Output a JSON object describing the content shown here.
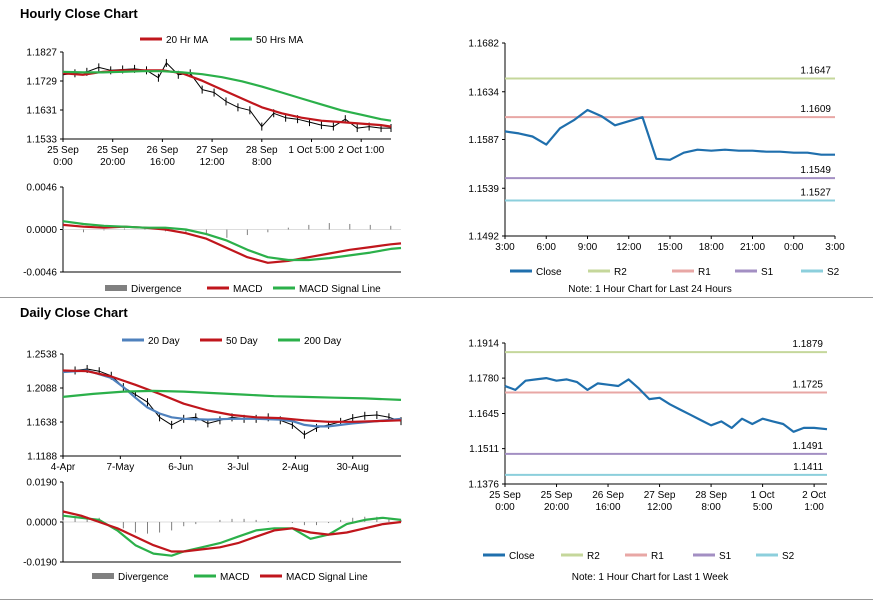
{
  "sections": {
    "hourly_title": "Hourly Close Chart",
    "daily_title": "Daily Close Chart"
  },
  "chart_data": [
    {
      "id": "hourly-ma",
      "type": "line",
      "ylim": [
        1.1533,
        1.1827
      ],
      "yticks": [
        "1.1827",
        "1.1729",
        "1.1631",
        "1.1533"
      ],
      "xlim": [
        0,
        8.25
      ],
      "xticks": [
        {
          "x": 0,
          "l1": "25 Sep",
          "l2": "0:00"
        },
        {
          "x": 1.25,
          "l1": "25 Sep",
          "l2": "20:00"
        },
        {
          "x": 2.5,
          "l1": "26 Sep",
          "l2": "16:00"
        },
        {
          "x": 3.75,
          "l1": "27 Sep",
          "l2": "12:00"
        },
        {
          "x": 5,
          "l1": "28 Sep",
          "l2": "8:00"
        },
        {
          "x": 6.25,
          "l1": "1 Oct 5:00",
          "l2": ""
        },
        {
          "x": 7.5,
          "l1": "2 Oct 1:00",
          "l2": ""
        }
      ],
      "legend": [
        "20 Hr MA",
        "50 Hrs MA"
      ],
      "ohlc_color": "#000000",
      "series": [
        {
          "name": "Price",
          "color": "#000000",
          "x": [
            0,
            0.3,
            0.6,
            0.9,
            1.2,
            1.5,
            1.8,
            2.1,
            2.4,
            2.6,
            2.9,
            3.2,
            3.5,
            3.8,
            4.1,
            4.4,
            4.7,
            5.0,
            5.3,
            5.6,
            5.9,
            6.2,
            6.5,
            6.8,
            7.1,
            7.4,
            7.7,
            8.0,
            8.25
          ],
          "values": [
            1.175,
            1.1755,
            1.176,
            1.1775,
            1.1765,
            1.1768,
            1.177,
            1.1765,
            1.174,
            1.179,
            1.175,
            1.1755,
            1.17,
            1.169,
            1.166,
            1.164,
            1.163,
            1.1575,
            1.162,
            1.1605,
            1.16,
            1.159,
            1.158,
            1.1575,
            1.16,
            1.157,
            1.1575,
            1.157,
            1.157
          ]
        },
        {
          "name": "20 Hr MA",
          "color": "#c0161c",
          "x": [
            0,
            0.5,
            1.0,
            1.5,
            2.0,
            2.5,
            3.0,
            3.5,
            4.0,
            4.5,
            5.0,
            5.5,
            6.0,
            6.5,
            7.0,
            7.5,
            8.0,
            8.25
          ],
          "values": [
            1.1755,
            1.175,
            1.176,
            1.1765,
            1.1765,
            1.1765,
            1.1755,
            1.173,
            1.17,
            1.167,
            1.164,
            1.162,
            1.1605,
            1.1595,
            1.159,
            1.1585,
            1.158,
            1.1575
          ]
        },
        {
          "name": "50 Hrs MA",
          "color": "#2bb04a",
          "x": [
            0,
            0.5,
            1.0,
            1.5,
            2.0,
            2.5,
            3.0,
            3.5,
            4.0,
            4.5,
            5.0,
            5.5,
            6.0,
            6.5,
            7.0,
            7.5,
            8.0,
            8.25
          ],
          "values": [
            1.176,
            1.1758,
            1.1758,
            1.176,
            1.1762,
            1.1762,
            1.1758,
            1.1752,
            1.1742,
            1.1728,
            1.171,
            1.169,
            1.167,
            1.165,
            1.163,
            1.1615,
            1.16,
            1.1595
          ]
        }
      ]
    },
    {
      "id": "hourly-macd",
      "type": "line",
      "ylim": [
        -0.0046,
        0.0046
      ],
      "yticks": [
        "0.0046",
        "0.0000",
        "-0.0046"
      ],
      "xlim": [
        0,
        8.25
      ],
      "legend": [
        "Divergence",
        "MACD",
        "MACD Signal Line"
      ],
      "series": [
        {
          "name": "Divergence",
          "type": "bar",
          "color": "#808080",
          "x": [
            0,
            0.5,
            1.0,
            1.5,
            2.0,
            2.5,
            3.0,
            3.5,
            4.0,
            4.5,
            5.0,
            5.5,
            6.0,
            6.5,
            7.0,
            7.5,
            8.0
          ],
          "values": [
            0.0001,
            -0.0003,
            -0.0001,
            0.0001,
            0.0001,
            -0.0002,
            -0.0004,
            -0.0006,
            -0.0009,
            -0.0006,
            -0.0003,
            0.0002,
            0.0005,
            0.0007,
            0.0006,
            0.0005,
            0.0004
          ]
        },
        {
          "name": "MACD",
          "color": "#c0161c",
          "x": [
            0,
            0.5,
            1.0,
            1.5,
            2.0,
            2.5,
            3.0,
            3.5,
            4.0,
            4.5,
            5.0,
            5.5,
            6.0,
            6.5,
            7.0,
            7.5,
            8.0,
            8.25
          ],
          "values": [
            0.0005,
            0.0003,
            0.0002,
            0.0003,
            0.0002,
            0.0,
            -0.0004,
            -0.001,
            -0.002,
            -0.003,
            -0.0036,
            -0.0034,
            -0.003,
            -0.0026,
            -0.0022,
            -0.0019,
            -0.0016,
            -0.0015
          ]
        },
        {
          "name": "MACD Signal Line",
          "color": "#2bb04a",
          "x": [
            0,
            0.5,
            1.0,
            1.5,
            2.0,
            2.5,
            3.0,
            3.5,
            4.0,
            4.5,
            5.0,
            5.5,
            6.0,
            6.5,
            7.0,
            7.5,
            8.0,
            8.25
          ],
          "values": [
            0.0009,
            0.0006,
            0.0004,
            0.0003,
            0.0002,
            0.0002,
            0.0,
            -0.0005,
            -0.0012,
            -0.0022,
            -0.003,
            -0.0033,
            -0.0033,
            -0.0031,
            -0.0028,
            -0.0025,
            -0.0021,
            -0.002
          ]
        }
      ]
    },
    {
      "id": "hourly-pivot",
      "type": "line",
      "ylim": [
        1.1492,
        1.1682
      ],
      "yticks": [
        "1.1682",
        "1.1634",
        "1.1587",
        "1.1539",
        "1.1492"
      ],
      "xlim": [
        0,
        24
      ],
      "xticks": [
        {
          "x": 0,
          "l1": "3:00",
          "l2": ""
        },
        {
          "x": 3,
          "l1": "6:00",
          "l2": ""
        },
        {
          "x": 6,
          "l1": "9:00",
          "l2": ""
        },
        {
          "x": 9,
          "l1": "12:00",
          "l2": ""
        },
        {
          "x": 12,
          "l1": "15:00",
          "l2": ""
        },
        {
          "x": 15,
          "l1": "18:00",
          "l2": ""
        },
        {
          "x": 18,
          "l1": "21:00",
          "l2": ""
        },
        {
          "x": 21,
          "l1": "0:00",
          "l2": ""
        },
        {
          "x": 24,
          "l1": "3:00",
          "l2": ""
        }
      ],
      "levels": [
        {
          "name": "R2",
          "value": 1.1647,
          "label": "1.1647",
          "color": "#c5d79b"
        },
        {
          "name": "R1",
          "value": 1.1609,
          "label": "1.1609",
          "color": "#e8a7a5"
        },
        {
          "name": "S1",
          "value": 1.1549,
          "label": "1.1549",
          "color": "#a38fc3"
        },
        {
          "name": "S2",
          "value": 1.1527,
          "label": "1.1527",
          "color": "#8ccfdc"
        }
      ],
      "series": [
        {
          "name": "Close",
          "color": "#1f6fad",
          "x": [
            0,
            1,
            2,
            3,
            4,
            5,
            6,
            7,
            8,
            9,
            10,
            11,
            12,
            13,
            14,
            15,
            16,
            17,
            18,
            19,
            20,
            21,
            22,
            23,
            24
          ],
          "values": [
            1.1595,
            1.1593,
            1.159,
            1.1582,
            1.1598,
            1.1606,
            1.1616,
            1.161,
            1.1601,
            1.1605,
            1.1609,
            1.1568,
            1.1567,
            1.1574,
            1.1577,
            1.1576,
            1.1577,
            1.1576,
            1.1576,
            1.1575,
            1.1575,
            1.1574,
            1.1574,
            1.1572,
            1.1572
          ]
        }
      ],
      "legend": [
        "Close",
        "R2",
        "R1",
        "S1",
        "S2"
      ],
      "note": "Note: 1 Hour Chart for Last 24 Hours"
    },
    {
      "id": "daily-ma",
      "type": "line",
      "ylim": [
        1.1188,
        1.2538
      ],
      "yticks": [
        "1.2538",
        "1.2088",
        "1.1638",
        "1.1188"
      ],
      "xlim": [
        0,
        112
      ],
      "xticks": [
        {
          "x": 0,
          "l1": "4-Apr",
          "l2": ""
        },
        {
          "x": 19,
          "l1": "7-May",
          "l2": ""
        },
        {
          "x": 39,
          "l1": "6-Jun",
          "l2": ""
        },
        {
          "x": 58,
          "l1": "3-Jul",
          "l2": ""
        },
        {
          "x": 77,
          "l1": "2-Aug",
          "l2": ""
        },
        {
          "x": 96,
          "l1": "30-Aug",
          "l2": ""
        }
      ],
      "legend": [
        "20 Day",
        "50 Day",
        "200 Day"
      ],
      "ohlc_color": "#000000",
      "series": [
        {
          "name": "Price",
          "color": "#000000",
          "x": [
            0,
            4,
            8,
            12,
            16,
            20,
            24,
            28,
            32,
            36,
            40,
            44,
            48,
            52,
            56,
            60,
            64,
            68,
            72,
            76,
            80,
            84,
            88,
            92,
            96,
            100,
            104,
            108,
            112
          ],
          "values": [
            1.23,
            1.232,
            1.234,
            1.231,
            1.225,
            1.21,
            1.2,
            1.19,
            1.17,
            1.16,
            1.168,
            1.17,
            1.162,
            1.166,
            1.17,
            1.168,
            1.168,
            1.17,
            1.166,
            1.16,
            1.147,
            1.156,
            1.16,
            1.164,
            1.169,
            1.172,
            1.173,
            1.17,
            1.165
          ]
        },
        {
          "name": "20 Day",
          "color": "#4f81bd",
          "x": [
            0,
            8,
            16,
            20,
            24,
            28,
            32,
            36,
            40,
            48,
            56,
            64,
            72,
            76,
            80,
            84,
            88,
            92,
            96,
            104,
            112
          ],
          "values": [
            1.23,
            1.232,
            1.222,
            1.21,
            1.196,
            1.183,
            1.175,
            1.17,
            1.168,
            1.167,
            1.168,
            1.168,
            1.167,
            1.165,
            1.16,
            1.158,
            1.158,
            1.16,
            1.162,
            1.165,
            1.168
          ]
        },
        {
          "name": "50 Day",
          "color": "#c0161c",
          "x": [
            0,
            8,
            16,
            24,
            32,
            40,
            48,
            56,
            64,
            72,
            80,
            88,
            96,
            104,
            112
          ],
          "values": [
            1.232,
            1.231,
            1.224,
            1.213,
            1.201,
            1.188,
            1.179,
            1.173,
            1.17,
            1.169,
            1.166,
            1.164,
            1.164,
            1.165,
            1.166
          ]
        },
        {
          "name": "200 Day",
          "color": "#2bb04a",
          "x": [
            0,
            10,
            20,
            30,
            40,
            50,
            60,
            70,
            80,
            90,
            100,
            112
          ],
          "values": [
            1.197,
            1.201,
            1.204,
            1.205,
            1.204,
            1.202,
            1.2,
            1.198,
            1.197,
            1.196,
            1.195,
            1.193
          ]
        }
      ]
    },
    {
      "id": "daily-macd",
      "type": "line",
      "ylim": [
        -0.019,
        0.019
      ],
      "yticks": [
        "0.0190",
        "0.0000",
        "-0.0190"
      ],
      "xlim": [
        0,
        112
      ],
      "legend": [
        "Divergence",
        "MACD",
        "MACD Signal Line"
      ],
      "series": [
        {
          "name": "Divergence",
          "type": "bar",
          "color": "#808080",
          "x": [
            0,
            4,
            8,
            12,
            16,
            20,
            24,
            28,
            32,
            36,
            40,
            44,
            48,
            52,
            56,
            60,
            64,
            68,
            72,
            76,
            80,
            84,
            88,
            92,
            96,
            100,
            104,
            108,
            112
          ],
          "values": [
            0.001,
            0.002,
            0.0025,
            0.002,
            0.0,
            -0.003,
            -0.005,
            -0.0055,
            -0.005,
            -0.004,
            -0.002,
            -0.001,
            0.0,
            0.001,
            0.0015,
            0.0015,
            0.001,
            0.0005,
            0.0,
            -0.0005,
            -0.0015,
            -0.0015,
            -0.0005,
            0.001,
            0.002,
            0.0025,
            0.0025,
            0.002,
            0.001
          ]
        },
        {
          "name": "MACD",
          "color": "#2bb04a",
          "x": [
            0,
            6,
            12,
            18,
            24,
            30,
            36,
            40,
            46,
            52,
            58,
            64,
            70,
            76,
            82,
            88,
            94,
            100,
            106,
            112
          ],
          "values": [
            0.003,
            0.002,
            0.001,
            -0.004,
            -0.011,
            -0.015,
            -0.016,
            -0.014,
            -0.012,
            -0.01,
            -0.007,
            -0.004,
            -0.003,
            -0.003,
            -0.008,
            -0.006,
            -0.001,
            0.001,
            0.002,
            0.001
          ]
        },
        {
          "name": "MACD Signal Line",
          "color": "#c0161c",
          "x": [
            0,
            6,
            12,
            18,
            24,
            30,
            36,
            40,
            46,
            52,
            58,
            64,
            70,
            76,
            82,
            88,
            94,
            100,
            106,
            112
          ],
          "values": [
            0.005,
            0.003,
            0.0,
            -0.003,
            -0.007,
            -0.011,
            -0.014,
            -0.014,
            -0.013,
            -0.012,
            -0.01,
            -0.007,
            -0.004,
            -0.003,
            -0.005,
            -0.006,
            -0.005,
            -0.003,
            -0.001,
            0.0
          ]
        }
      ]
    },
    {
      "id": "daily-pivot",
      "type": "line",
      "ylim": [
        1.1376,
        1.1914
      ],
      "yticks": [
        "1.1914",
        "1.1780",
        "1.1645",
        "1.1511",
        "1.1376"
      ],
      "xlim": [
        0,
        6.25
      ],
      "xticks": [
        {
          "x": 0,
          "l1": "25 Sep",
          "l2": "0:00"
        },
        {
          "x": 1,
          "l1": "25 Sep",
          "l2": "20:00"
        },
        {
          "x": 2,
          "l1": "26 Sep",
          "l2": "16:00"
        },
        {
          "x": 3,
          "l1": "27 Sep",
          "l2": "12:00"
        },
        {
          "x": 4,
          "l1": "28 Sep",
          "l2": "8:00"
        },
        {
          "x": 5,
          "l1": "1 Oct",
          "l2": "5:00"
        },
        {
          "x": 6,
          "l1": "2 Oct",
          "l2": "1:00"
        }
      ],
      "levels": [
        {
          "name": "R2",
          "value": 1.1879,
          "label": "1.1879",
          "color": "#c5d79b"
        },
        {
          "name": "R1",
          "value": 1.1725,
          "label": "1.1725",
          "color": "#e8a7a5"
        },
        {
          "name": "S1",
          "value": 1.1491,
          "label": "1.1491",
          "color": "#a38fc3"
        },
        {
          "name": "S2",
          "value": 1.1411,
          "label": "1.1411",
          "color": "#8ccfdc"
        }
      ],
      "series": [
        {
          "name": "Close",
          "color": "#1f6fad",
          "x": [
            0,
            0.2,
            0.4,
            0.6,
            0.8,
            1.0,
            1.2,
            1.4,
            1.6,
            1.8,
            2.0,
            2.2,
            2.4,
            2.6,
            2.8,
            3.0,
            3.2,
            3.4,
            3.6,
            3.8,
            4.0,
            4.2,
            4.4,
            4.6,
            4.8,
            5.0,
            5.2,
            5.4,
            5.6,
            5.8,
            6.0,
            6.25
          ],
          "values": [
            1.175,
            1.1735,
            1.177,
            1.1775,
            1.178,
            1.177,
            1.1775,
            1.1765,
            1.1735,
            1.176,
            1.1755,
            1.175,
            1.1775,
            1.174,
            1.17,
            1.1705,
            1.168,
            1.166,
            1.164,
            1.162,
            1.16,
            1.1615,
            1.159,
            1.1625,
            1.1605,
            1.1625,
            1.1615,
            1.1605,
            1.1575,
            1.159,
            1.159,
            1.1585
          ]
        }
      ],
      "legend": [
        "Close",
        "R2",
        "R1",
        "S1",
        "S2"
      ],
      "note": "Note: 1 Hour Chart for Last 1 Week"
    }
  ]
}
